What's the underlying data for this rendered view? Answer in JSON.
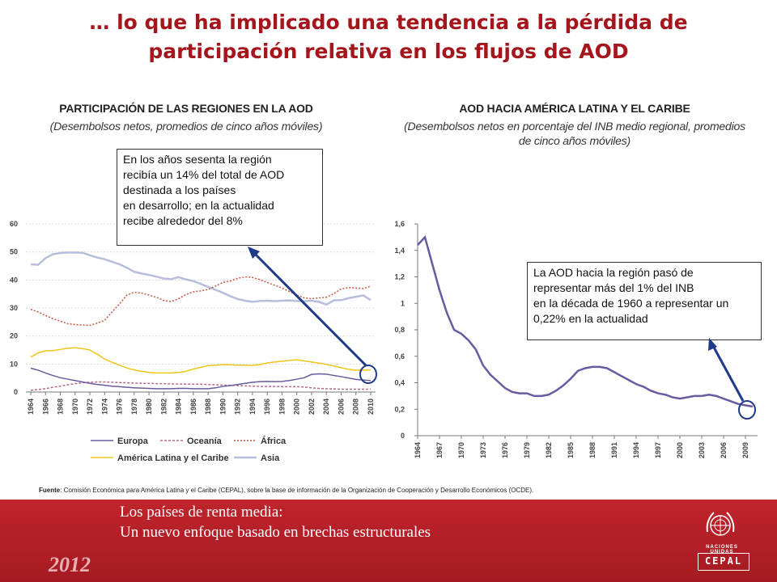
{
  "title": {
    "line1": "… lo que ha implicado una tendencia a la pérdida de",
    "line2": "participación relativa  en los flujos de AOD"
  },
  "left_panel": {
    "title": "PARTICIPACIÓN DE LAS REGIONES EN LA AOD",
    "subtitle": "(Desembolsos netos, promedios de cinco años móviles)",
    "callout": "En los años sesenta la región\nrecibía un 14% del total de AOD\ndestinada a los países\nen desarrollo; en la actualidad\nrecibe alrededor del 8%"
  },
  "right_panel": {
    "title": "AOD HACIA AMÉRICA LATINA Y EL CARIBE",
    "subtitle_line1": "(Desembolsos netos en porcentaje del INB medio regional, promedios",
    "subtitle_line2": "de cinco años móviles)",
    "callout": "La AOD hacia la región pasó de\nrepresentar más del 1%  del INB\nen la década de 1960 a representar un\n0,22% en la actualidad"
  },
  "source": {
    "label": "Fuente",
    "text": ": Comisión Económica para América Latina y el Caribe (CEPAL), sobre la base de información de la Organización de Cooperación y Desarrollo Económicos (OCDE)."
  },
  "footer": {
    "line1": "Los países de renta media:",
    "line2": "Un nuevo enfoque basado en brechas estructurales",
    "year": "2012",
    "org": "NACIONES UNIDAS",
    "brand": "CEPAL"
  },
  "colors": {
    "title": "#a4151c",
    "europa": "#6a5aa0",
    "oceania": "#b56a8a",
    "africa": "#c8553d",
    "alc": "#f0c419",
    "asia": "#b6bedb",
    "aod": "#6a5aa0",
    "arrow": "#1f3a8a",
    "footer": "#b0202a"
  },
  "chart_data": [
    {
      "type": "line",
      "ylim": [
        0,
        60
      ],
      "yticks": [
        "0",
        "10",
        "20",
        "30",
        "40",
        "50",
        "60"
      ],
      "x": [
        1964,
        1965,
        1966,
        1967,
        1968,
        1969,
        1970,
        1971,
        1972,
        1973,
        1974,
        1975,
        1976,
        1977,
        1978,
        1979,
        1980,
        1981,
        1982,
        1983,
        1984,
        1985,
        1986,
        1987,
        1988,
        1989,
        1990,
        1991,
        1992,
        1993,
        1994,
        1995,
        1996,
        1997,
        1998,
        1999,
        2000,
        2001,
        2002,
        2003,
        2004,
        2005,
        2006,
        2007,
        2008,
        2009,
        2010
      ],
      "xticks": [
        1964,
        1966,
        1968,
        1970,
        1972,
        1974,
        1976,
        1978,
        1980,
        1982,
        1984,
        1986,
        1988,
        1990,
        1992,
        1994,
        1996,
        1998,
        2000,
        2002,
        2004,
        2006,
        2008,
        2010
      ],
      "series": [
        {
          "name": "Europa",
          "style": "solid",
          "values": [
            8.5,
            7.8,
            6.8,
            5.9,
            5.1,
            4.6,
            4.1,
            3.6,
            3.1,
            2.7,
            2.4,
            2.1,
            1.9,
            1.7,
            1.5,
            1.4,
            1.3,
            1.2,
            1.2,
            1.2,
            1.3,
            1.3,
            1.2,
            1.2,
            1.2,
            1.5,
            2.0,
            2.3,
            2.7,
            3.1,
            3.5,
            3.7,
            3.8,
            3.7,
            3.8,
            4.1,
            4.6,
            5.1,
            6.3,
            6.5,
            6.4,
            5.9,
            5.5,
            5.0,
            4.5,
            4.3,
            4.1
          ]
        },
        {
          "name": "Oceanía",
          "style": "dashed",
          "values": [
            0.6,
            0.9,
            1.2,
            1.7,
            2.1,
            2.6,
            3.0,
            3.3,
            3.5,
            3.6,
            3.6,
            3.5,
            3.4,
            3.3,
            3.2,
            3.1,
            3.1,
            3.0,
            3.0,
            2.9,
            2.9,
            2.8,
            2.8,
            2.8,
            2.7,
            2.6,
            2.5,
            2.4,
            2.3,
            2.2,
            2.1,
            2.0,
            2.0,
            2.0,
            1.9,
            1.9,
            1.9,
            1.8,
            1.5,
            1.3,
            1.2,
            1.1,
            1.0,
            1.0,
            1.0,
            1.0,
            1.0
          ]
        },
        {
          "name": "África",
          "style": "dotted",
          "values": [
            29.5,
            28.6,
            27.3,
            26.2,
            25.3,
            24.4,
            24.1,
            23.9,
            23.8,
            24.6,
            25.6,
            28.6,
            31.4,
            34.6,
            35.6,
            35.3,
            34.6,
            33.8,
            32.7,
            32.3,
            33.3,
            34.8,
            35.8,
            36.1,
            36.6,
            37.8,
            39.1,
            39.6,
            40.6,
            41.1,
            40.9,
            40.1,
            39.1,
            38.1,
            37.1,
            35.9,
            34.6,
            33.6,
            33.3,
            33.6,
            33.8,
            35.1,
            36.8,
            37.3,
            37.1,
            36.9,
            37.8
          ]
        },
        {
          "name": "América Latina y el Caribe",
          "style": "solid",
          "values": [
            12.5,
            14.0,
            14.7,
            14.8,
            15.2,
            15.6,
            15.8,
            15.5,
            15.0,
            13.5,
            11.8,
            10.6,
            9.6,
            8.6,
            7.9,
            7.4,
            7.0,
            6.8,
            6.8,
            6.8,
            7.0,
            7.4,
            8.2,
            8.8,
            9.4,
            9.6,
            9.8,
            9.7,
            9.6,
            9.6,
            9.5,
            9.8,
            10.4,
            10.7,
            11.0,
            11.3,
            11.5,
            11.1,
            10.7,
            10.3,
            9.9,
            9.3,
            8.7,
            8.1,
            7.8,
            7.8,
            7.9
          ]
        },
        {
          "name": "Asia",
          "style": "solid",
          "values": [
            45.6,
            45.4,
            47.8,
            49.2,
            49.6,
            49.8,
            49.8,
            49.7,
            48.8,
            48.0,
            47.4,
            46.5,
            45.6,
            44.4,
            42.9,
            42.3,
            41.8,
            41.2,
            40.5,
            40.3,
            41.0,
            40.2,
            39.6,
            38.6,
            37.5,
            36.5,
            35.4,
            34.2,
            33.2,
            32.6,
            32.2,
            32.5,
            32.6,
            32.4,
            32.6,
            32.7,
            32.5,
            32.4,
            32.6,
            32.2,
            31.2,
            32.7,
            32.8,
            33.5,
            34.0,
            34.5,
            32.8
          ]
        }
      ]
    },
    {
      "type": "line",
      "ylim": [
        0,
        1.6
      ],
      "yticks": [
        "0",
        "0,2",
        "0,4",
        "0,6",
        "0,8",
        "1",
        "1,2",
        "1,4",
        "1,6"
      ],
      "x": [
        1964,
        1965,
        1966,
        1967,
        1968,
        1969,
        1970,
        1971,
        1972,
        1973,
        1974,
        1975,
        1976,
        1977,
        1978,
        1979,
        1980,
        1981,
        1982,
        1983,
        1984,
        1985,
        1986,
        1987,
        1988,
        1989,
        1990,
        1991,
        1992,
        1993,
        1994,
        1995,
        1996,
        1997,
        1998,
        1999,
        2000,
        2001,
        2002,
        2003,
        2004,
        2005,
        2006,
        2007,
        2008,
        2009,
        2010
      ],
      "xticks": [
        1964,
        1967,
        1970,
        1973,
        1976,
        1979,
        1982,
        1985,
        1988,
        1991,
        1994,
        1997,
        2000,
        2003,
        2006,
        2009
      ],
      "series": [
        {
          "name": "AOD / INB",
          "values": [
            1.44,
            1.5,
            1.3,
            1.1,
            0.93,
            0.8,
            0.77,
            0.72,
            0.65,
            0.53,
            0.46,
            0.41,
            0.36,
            0.33,
            0.32,
            0.32,
            0.3,
            0.3,
            0.31,
            0.34,
            0.38,
            0.43,
            0.49,
            0.51,
            0.52,
            0.52,
            0.51,
            0.48,
            0.45,
            0.42,
            0.39,
            0.37,
            0.34,
            0.32,
            0.31,
            0.29,
            0.28,
            0.29,
            0.3,
            0.3,
            0.31,
            0.3,
            0.28,
            0.26,
            0.24,
            0.23,
            0.22
          ]
        }
      ]
    }
  ]
}
